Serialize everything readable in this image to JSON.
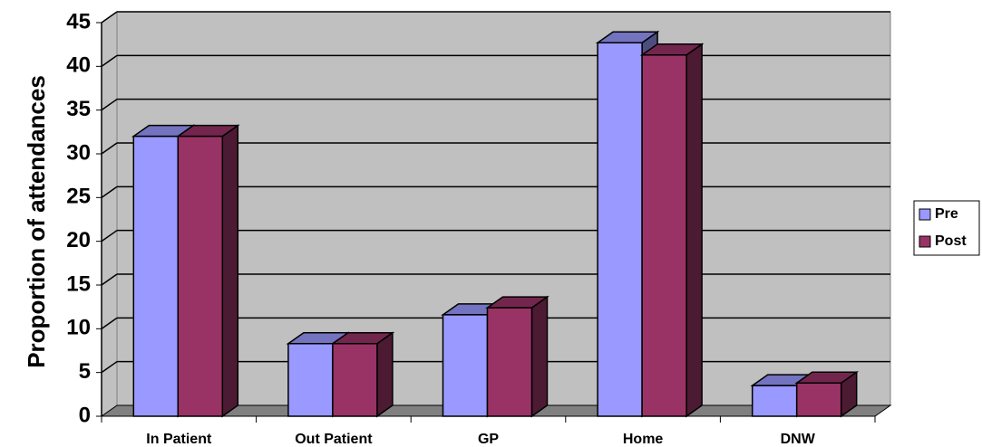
{
  "chart_data": {
    "type": "bar3d",
    "y_label": "Proportion of attendances",
    "categories": [
      "In Patient",
      "Out Patient",
      "GP",
      "Home",
      "DNW"
    ],
    "series": [
      {
        "name": "Pre",
        "color": "#9999ff",
        "values": [
          32,
          8.3,
          11.6,
          42.7,
          3.5
        ]
      },
      {
        "name": "Post",
        "color": "#993366",
        "values": [
          32,
          8.3,
          12.4,
          41.3,
          3.8
        ]
      }
    ],
    "ylim": [
      0,
      45
    ],
    "yticks": [
      0,
      5,
      10,
      15,
      20,
      25,
      30,
      35,
      40,
      45
    ],
    "grid": true,
    "legend": "right"
  }
}
